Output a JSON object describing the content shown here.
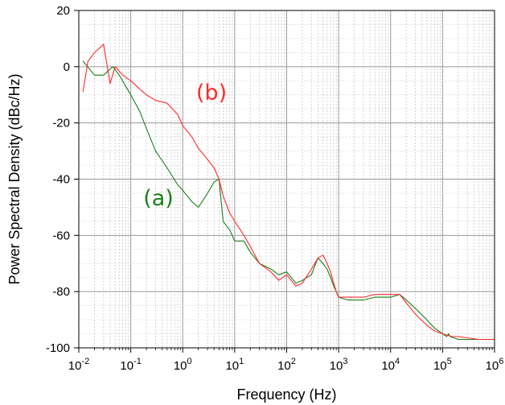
{
  "chart_data": {
    "type": "line",
    "title": "",
    "xlabel": "Frequency (Hz)",
    "ylabel": "Power Spectral Density (dBc/Hz)",
    "x_scale": "log",
    "xlim": [
      0.01,
      1000000
    ],
    "ylim": [
      -100,
      20
    ],
    "x_ticks": [
      {
        "base": "10",
        "exp": "-2"
      },
      {
        "base": "10",
        "exp": "-1"
      },
      {
        "base": "10",
        "exp": "0"
      },
      {
        "base": "10",
        "exp": "1"
      },
      {
        "base": "10",
        "exp": "2"
      },
      {
        "base": "10",
        "exp": "3"
      },
      {
        "base": "10",
        "exp": "4"
      },
      {
        "base": "10",
        "exp": "5"
      },
      {
        "base": "10",
        "exp": "6"
      }
    ],
    "y_ticks": [
      "20",
      "0",
      "-20",
      "-40",
      "-60",
      "-80",
      "-100"
    ],
    "y_tick_values": [
      20,
      0,
      -20,
      -40,
      -60,
      -80,
      -100
    ],
    "grid": "major solid, minor dashed",
    "legend": "none",
    "annotations": [
      {
        "text": "(a)",
        "color": "#1a7f1a",
        "series": 0
      },
      {
        "text": "(b)",
        "color": "#ff2a2a",
        "series": 1
      }
    ],
    "series": [
      {
        "color": "#1a7f1a",
        "x": [
          0.012,
          0.02,
          0.03,
          0.045,
          0.06,
          0.08,
          0.1,
          0.15,
          0.2,
          0.3,
          0.5,
          0.8,
          1,
          1.5,
          2,
          3,
          4,
          5,
          6,
          8,
          10,
          15,
          20,
          30,
          50,
          70,
          100,
          150,
          200,
          300,
          400,
          500,
          600,
          700,
          800,
          900,
          1000,
          1500,
          2000,
          3000,
          5000,
          8000,
          10000,
          15000,
          20000,
          30000,
          50000,
          70000,
          100000,
          120000,
          130000,
          140000,
          200000,
          500000,
          1000000
        ],
        "y": [
          2,
          -3,
          -3,
          0,
          -3,
          -7,
          -10,
          -16,
          -22,
          -30,
          -36,
          -42,
          -44,
          -48,
          -50,
          -45,
          -41,
          -40,
          -55,
          -58,
          -62,
          -62,
          -66,
          -70,
          -72,
          -74,
          -73,
          -77,
          -76,
          -74,
          -68,
          -70,
          -72,
          -75,
          -78,
          -80,
          -82,
          -83,
          -83,
          -83,
          -82,
          -82,
          -82,
          -81,
          -83,
          -86,
          -90,
          -93,
          -95,
          -96,
          -95,
          -96,
          -97,
          -97,
          -97
        ]
      },
      {
        "color": "#ff2a2a",
        "x": [
          0.012,
          0.015,
          0.02,
          0.03,
          0.04,
          0.05,
          0.07,
          0.1,
          0.15,
          0.2,
          0.3,
          0.5,
          0.8,
          1,
          1.5,
          2,
          3,
          4,
          5,
          6,
          8,
          10,
          15,
          20,
          30,
          50,
          70,
          100,
          150,
          200,
          300,
          400,
          500,
          600,
          700,
          800,
          900,
          1000,
          1500,
          2000,
          3000,
          5000,
          8000,
          10000,
          15000,
          20000,
          30000,
          50000,
          70000,
          100000,
          150000,
          200000,
          500000,
          1000000
        ],
        "y": [
          -9,
          2,
          5,
          8,
          -6,
          0,
          -3,
          -5,
          -8,
          -10,
          -12,
          -13,
          -17,
          -21,
          -25,
          -29,
          -33,
          -36,
          -40,
          -46,
          -52,
          -55,
          -60,
          -64,
          -70,
          -73,
          -76,
          -74,
          -78,
          -77,
          -72,
          -68,
          -67,
          -70,
          -73,
          -77,
          -80,
          -82,
          -82,
          -82,
          -82,
          -81,
          -81,
          -81,
          -81,
          -84,
          -88,
          -92,
          -94,
          -95,
          -96,
          -96,
          -97,
          -97
        ]
      }
    ]
  }
}
